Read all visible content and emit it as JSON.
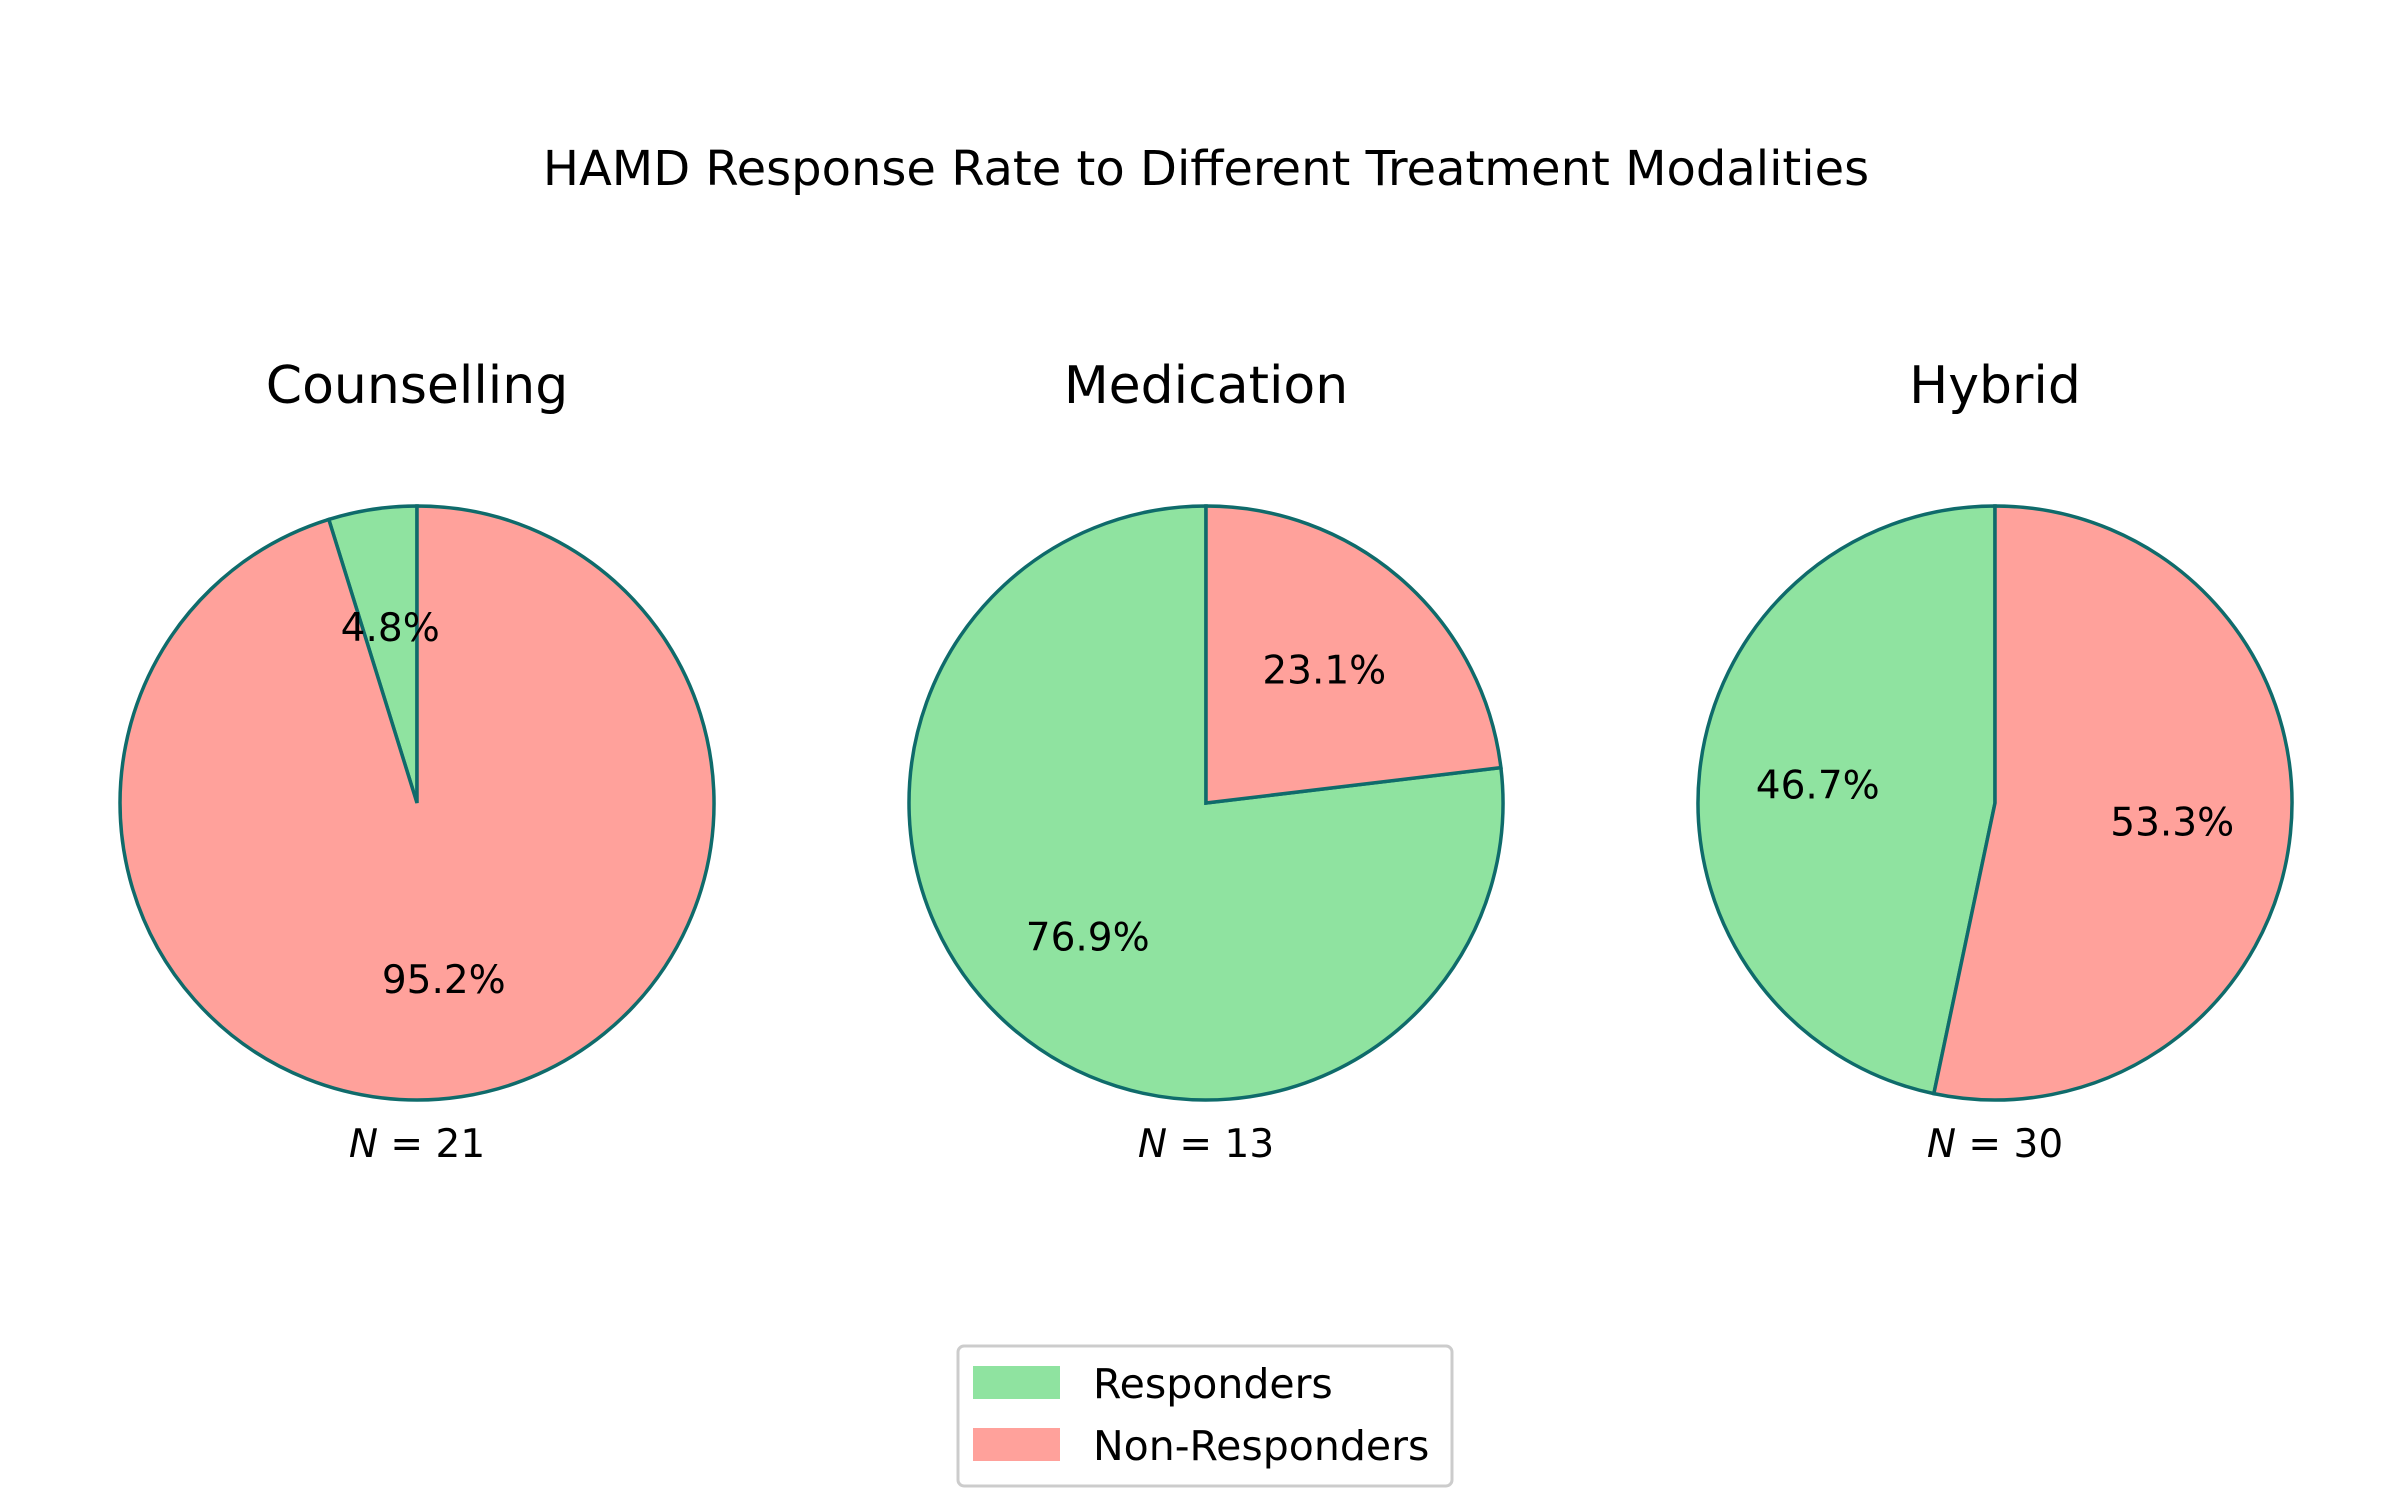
{
  "chart_data": {
    "type": "pie",
    "title": "HAMD Response Rate to Different Treatment Modalities",
    "legend": {
      "placement": "bottom-center",
      "entries": [
        "Responders",
        "Non-Responders"
      ]
    },
    "colors": {
      "responders": "#8fe3a0",
      "non_responders": "#ffa19b",
      "edge": "#0f6b6b"
    },
    "series_names": [
      "Responders",
      "Non-Responders"
    ],
    "pies": [
      {
        "title": "Counselling",
        "n_label": "N = 21",
        "values": [
          4.8,
          95.2
        ],
        "labels": [
          "4.8%",
          "95.2%"
        ]
      },
      {
        "title": "Medication",
        "n_label": "N = 13",
        "values": [
          76.9,
          23.1
        ],
        "labels": [
          "76.9%",
          "23.1%"
        ]
      },
      {
        "title": "Hybrid",
        "n_label": "N = 30",
        "values": [
          46.7,
          53.3
        ],
        "labels": [
          "46.7%",
          "53.3%"
        ]
      }
    ]
  }
}
